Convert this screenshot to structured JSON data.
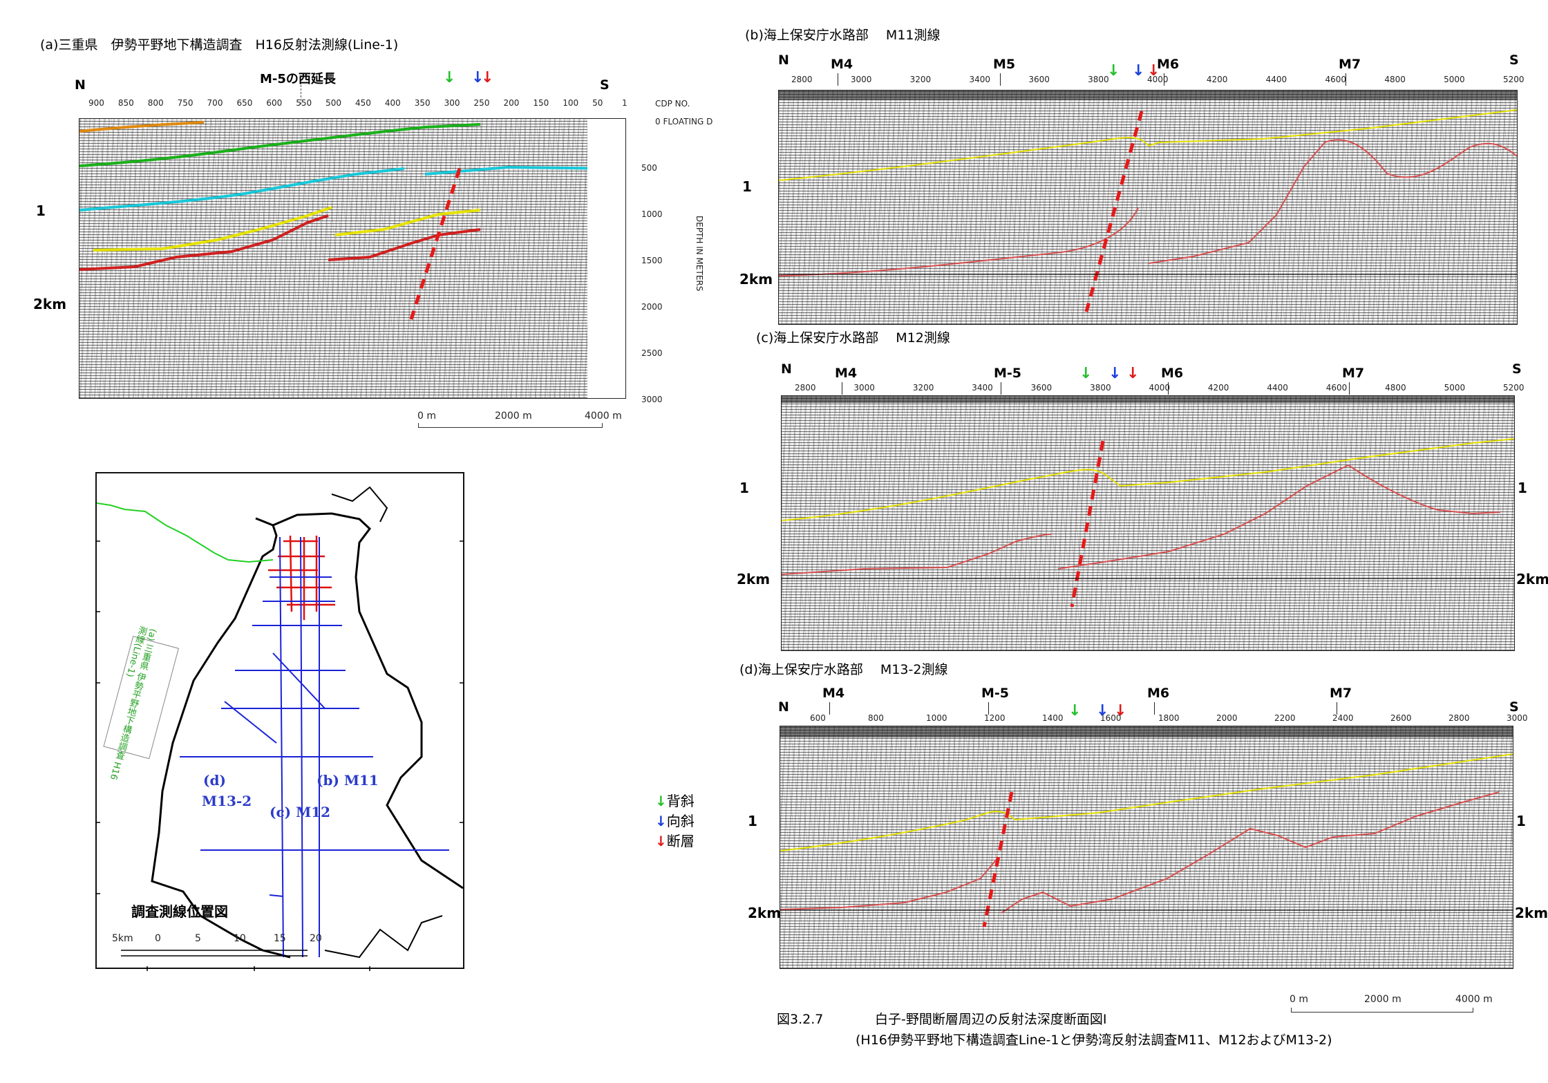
{
  "panels": {
    "a": {
      "title": "(a)三重県　伊勢平野地下構造調査　H16反射法測線(Line-1)",
      "left_label": "N",
      "right_label": "S",
      "extension_label": "M-5の西延長",
      "cdp_ticks": [
        "900",
        "850",
        "800",
        "750",
        "700",
        "650",
        "600",
        "550",
        "500",
        "450",
        "400",
        "350",
        "300",
        "250",
        "200",
        "150",
        "100",
        "50",
        "1"
      ],
      "right_axis_header": "CDP NO.",
      "floating_label": "0 FLOATING D",
      "depth_axis_title": "DEPTH IN METERS",
      "depth_ticks": [
        "500",
        "1000",
        "1500",
        "2000",
        "2500",
        "3000"
      ],
      "depth_1": "1",
      "depth_2": "2km",
      "scale": {
        "start": "0 m",
        "mid": "2000 m",
        "end": "4000 m"
      }
    },
    "b": {
      "title": "(b)海上保安庁水路部　 M11測線",
      "left_label": "N",
      "right_label": "S",
      "markers": [
        "M4",
        "M5",
        "M6",
        "M7"
      ],
      "ticks": [
        "2800",
        "3000",
        "3200",
        "3400",
        "3600",
        "3800",
        "4000",
        "4200",
        "4400",
        "4600",
        "4800",
        "5000",
        "5200"
      ],
      "depth_1": "1",
      "depth_2": "2km"
    },
    "c": {
      "title": "(c)海上保安庁水路部　 M12測線",
      "left_label": "N",
      "right_label": "S",
      "markers": [
        "M4",
        "M-5",
        "M6",
        "M7"
      ],
      "ticks": [
        "2800",
        "3000",
        "3200",
        "3400",
        "3600",
        "3800",
        "4000",
        "4200",
        "4400",
        "4600",
        "4800",
        "5000",
        "5200"
      ],
      "depth_1": "1",
      "depth_2": "2km",
      "depth_1_right": "1",
      "depth_2_right": "2km"
    },
    "d": {
      "title": "(d)海上保安庁水路部　 M13-2測線",
      "left_label": "N",
      "right_label": "S",
      "markers": [
        "M4",
        "M-5",
        "M6",
        "M7"
      ],
      "ticks": [
        "600",
        "800",
        "1000",
        "1200",
        "1400",
        "1600",
        "1800",
        "2000",
        "2200",
        "2400",
        "2600",
        "2800",
        "3000"
      ],
      "depth_1": "1",
      "depth_2": "2km",
      "depth_1_right": "1",
      "depth_2_right": "2km"
    }
  },
  "map": {
    "title": "調査測線位置図",
    "line_a_label": "(a) 三重県 伊勢平野地下構造調査 H16測線(Line-1)",
    "label_d": "(d)",
    "label_d2": "M13-2",
    "label_b": "(b) M11",
    "label_c": "(c) M12",
    "scale_ticks": [
      "5km",
      "0",
      "5",
      "10",
      "15",
      "20"
    ]
  },
  "legend": {
    "anticline": "背斜",
    "syncline": "向斜",
    "fault": "断層",
    "colors": {
      "anticline": "#22c02a",
      "syncline": "#1a3ee0",
      "fault": "#e01a1a"
    }
  },
  "bottom_scale": {
    "start": "0 m",
    "mid": "2000 m",
    "end": "4000 m"
  },
  "caption": {
    "figure_no": "図3.2.7",
    "title": "白子-野間断層周辺の反射法深度断面図Ⅰ",
    "subtitle": "(H16伊勢平野地下構造調査Line-1と伊勢湾反射法調査M11、M12およびM13-2)"
  },
  "colors": {
    "horizon_orange": "#e08a10",
    "horizon_green": "#1ab01a",
    "horizon_cyan": "#18c8d8",
    "horizon_yellow": "#e6e200",
    "horizon_red": "#d02020",
    "map_red": "#e01010",
    "map_blue": "#1a22d8",
    "map_green": "#22d022"
  }
}
